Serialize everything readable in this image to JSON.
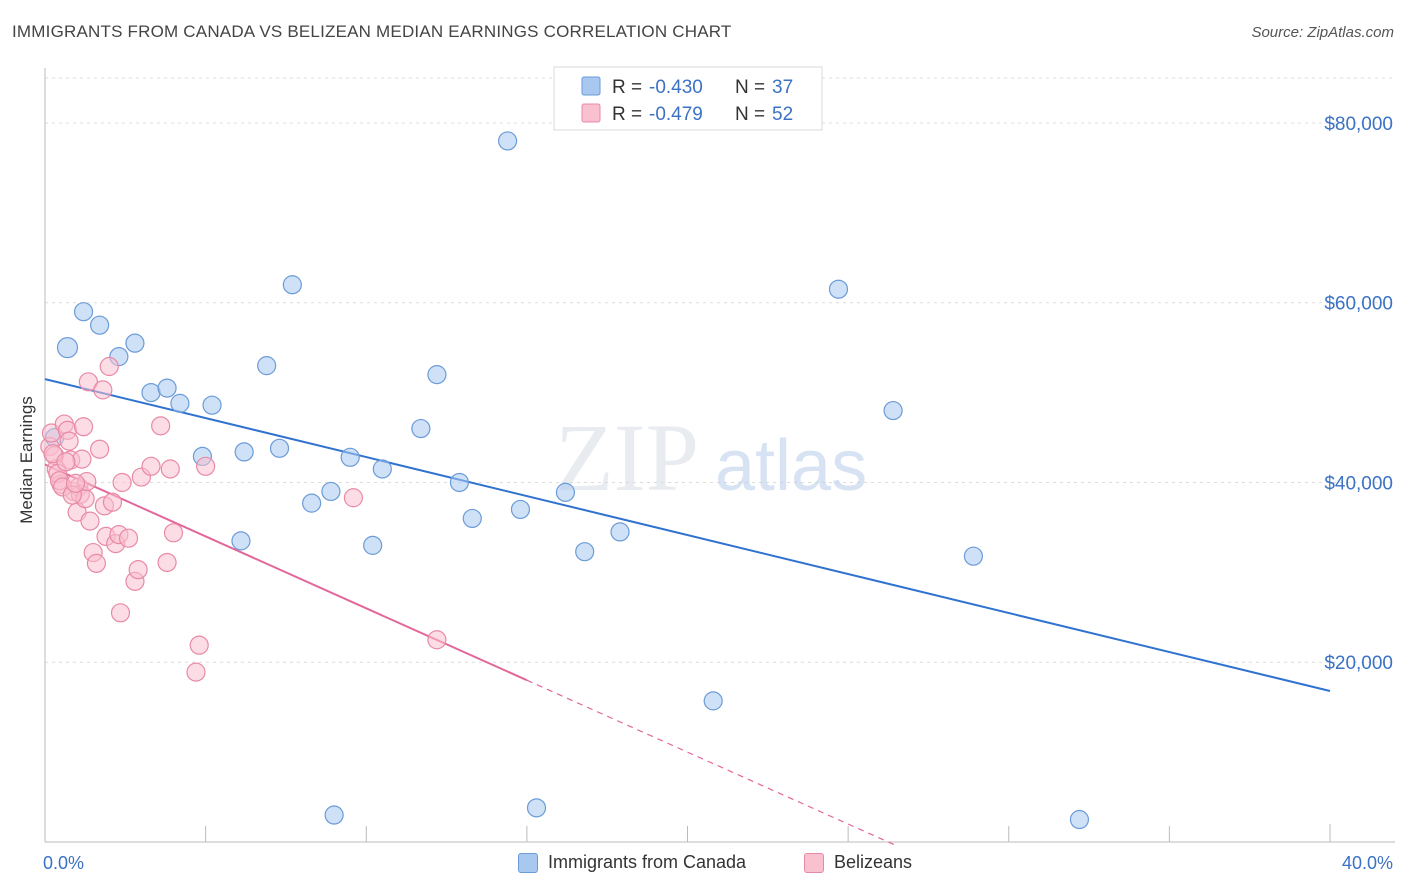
{
  "title": "IMMIGRANTS FROM CANADA VS BELIZEAN MEDIAN EARNINGS CORRELATION CHART",
  "source": "Source: ZipAtlas.com",
  "watermark": {
    "zip": "ZIP",
    "atlas": "atlas"
  },
  "legend": {
    "r_label": "R =",
    "n_label": "N =",
    "rows": [
      {
        "r": "-0.430",
        "n": "37",
        "color": "#a8c8f0",
        "stroke": "#6b9bd8"
      },
      {
        "r": "-0.479",
        "n": "52",
        "color": "#f9c0d0",
        "stroke": "#e88aa6"
      }
    ]
  },
  "bottom_legend": [
    {
      "label": "Immigrants from Canada",
      "color": "#a8c8f0",
      "stroke": "#6b9bd8"
    },
    {
      "label": "Belizeans",
      "color": "#f9c0d0",
      "stroke": "#e88aa6"
    }
  ],
  "chart_data": {
    "type": "scatter",
    "ylabel": "Median Earnings",
    "xlim": [
      0,
      40
    ],
    "ylim": [
      0,
      85000
    ],
    "x_tick_labels": [
      "0.0%",
      "40.0%"
    ],
    "y_ticks": [
      20000,
      40000,
      60000,
      80000
    ],
    "y_tick_labels": [
      "$20,000",
      "$40,000",
      "$60,000",
      "$80,000"
    ],
    "grid": true,
    "legend_position": "top-center",
    "series": [
      {
        "name": "Immigrants from Canada",
        "color": "#a8c8f0",
        "stroke": "#6b9bd8",
        "line_color": "#2f72d0",
        "trend": {
          "x0": 0,
          "y0": 51500,
          "x1": 40,
          "y1": 16800
        },
        "points": [
          [
            0.3,
            45000
          ],
          [
            0.7,
            55000
          ],
          [
            1.2,
            59000
          ],
          [
            1.7,
            57500
          ],
          [
            2.3,
            54000
          ],
          [
            2.8,
            55500
          ],
          [
            3.3,
            50000
          ],
          [
            3.8,
            50500
          ],
          [
            4.2,
            48800
          ],
          [
            5.2,
            48600
          ],
          [
            4.9,
            42900
          ],
          [
            6.1,
            33500
          ],
          [
            6.2,
            43400
          ],
          [
            6.9,
            53000
          ],
          [
            7.3,
            43800
          ],
          [
            7.7,
            62000
          ],
          [
            8.3,
            37700
          ],
          [
            8.9,
            39000
          ],
          [
            9.5,
            42800
          ],
          [
            9.0,
            3000
          ],
          [
            10.5,
            41500
          ],
          [
            10.2,
            33000
          ],
          [
            11.7,
            46000
          ],
          [
            12.2,
            52000
          ],
          [
            12.9,
            40000
          ],
          [
            13.3,
            36000
          ],
          [
            14.4,
            78000
          ],
          [
            14.8,
            37000
          ],
          [
            15.3,
            3800
          ],
          [
            16.2,
            38900
          ],
          [
            16.8,
            32300
          ],
          [
            17.9,
            34500
          ],
          [
            20.8,
            15700
          ],
          [
            24.7,
            61500
          ],
          [
            26.4,
            48000
          ],
          [
            28.9,
            31800
          ],
          [
            32.2,
            2500
          ]
        ]
      },
      {
        "name": "Belizeans",
        "color": "#f9c0d0",
        "stroke": "#e88aa6",
        "line_color": "#e2679a",
        "trend": {
          "x0": 0,
          "y0": 42000,
          "x1": 15,
          "y1": 18000,
          "dash_to_x": 26.5,
          "dash_to_y": -400
        },
        "points": [
          [
            0.15,
            44000
          ],
          [
            0.2,
            45500
          ],
          [
            0.3,
            43000
          ],
          [
            0.35,
            41500
          ],
          [
            0.5,
            39800
          ],
          [
            0.6,
            46500
          ],
          [
            0.7,
            45800
          ],
          [
            0.8,
            42500
          ],
          [
            0.9,
            39000
          ],
          [
            1.0,
            36700
          ],
          [
            1.05,
            39500
          ],
          [
            1.1,
            38700
          ],
          [
            1.15,
            42600
          ],
          [
            1.2,
            46200
          ],
          [
            1.25,
            38200
          ],
          [
            1.3,
            40100
          ],
          [
            1.35,
            51200
          ],
          [
            1.4,
            35700
          ],
          [
            1.5,
            32200
          ],
          [
            1.6,
            31000
          ],
          [
            1.7,
            43700
          ],
          [
            1.8,
            50300
          ],
          [
            1.85,
            37400
          ],
          [
            1.9,
            34000
          ],
          [
            2.0,
            52900
          ],
          [
            2.1,
            37800
          ],
          [
            2.2,
            33200
          ],
          [
            2.3,
            34200
          ],
          [
            2.35,
            25500
          ],
          [
            2.4,
            40000
          ],
          [
            2.6,
            33800
          ],
          [
            2.8,
            29000
          ],
          [
            2.9,
            30300
          ],
          [
            3.0,
            40600
          ],
          [
            3.3,
            41800
          ],
          [
            3.6,
            46300
          ],
          [
            3.8,
            31100
          ],
          [
            3.9,
            41500
          ],
          [
            4.0,
            34400
          ],
          [
            4.8,
            21900
          ],
          [
            4.7,
            18900
          ],
          [
            5.0,
            41800
          ],
          [
            9.6,
            38300
          ],
          [
            12.2,
            22500
          ],
          [
            0.25,
            43200
          ],
          [
            0.4,
            41000
          ],
          [
            0.45,
            40200
          ],
          [
            0.55,
            39500
          ],
          [
            0.65,
            42300
          ],
          [
            0.75,
            44600
          ],
          [
            0.85,
            38600
          ],
          [
            0.95,
            39900
          ]
        ]
      }
    ]
  }
}
